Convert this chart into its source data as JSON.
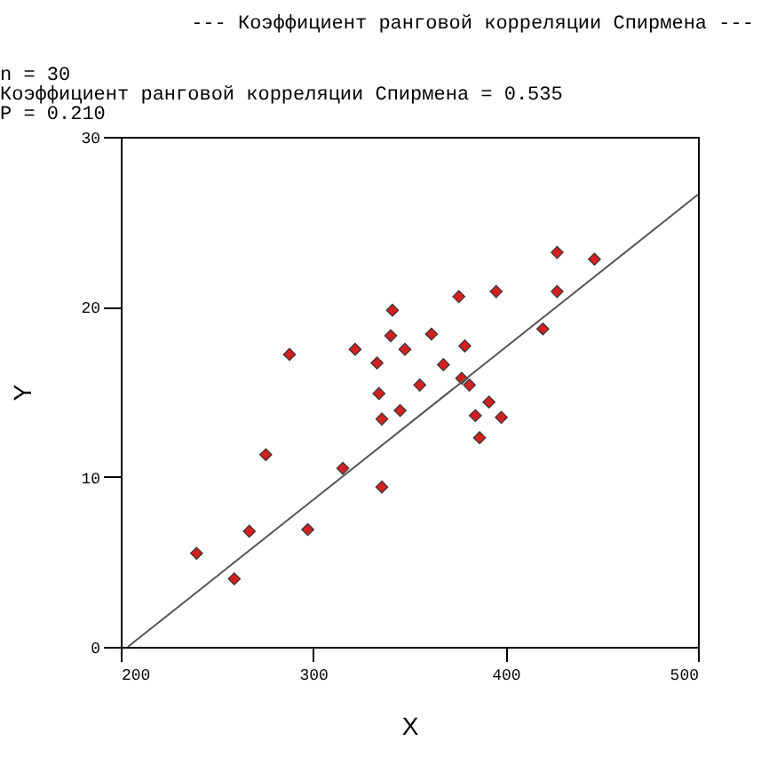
{
  "chart_data": {
    "type": "scatter",
    "title": "--- Коэффициент ранговой корреляции Спирмена ---",
    "annotations": [
      "n =   30",
      "Коэффициент ранговой корреляции Спирмена =  0.535",
      "P = 0.210"
    ],
    "xlabel": "X",
    "ylabel": "Y",
    "xlim": [
      200,
      500
    ],
    "ylim": [
      0,
      30
    ],
    "xticks": [
      200,
      300,
      400,
      500
    ],
    "yticks": [
      0,
      10,
      20,
      30
    ],
    "grid": false,
    "marker": "diamond",
    "series": [
      {
        "color": "#d42020",
        "x": [
          239.4,
          259,
          266.8,
          275.4,
          287.7,
          297.2,
          315.4,
          321.8,
          333.2,
          334.2,
          335.7,
          335.7,
          340.3,
          341.2,
          345.2,
          347.7,
          355.4,
          361.5,
          367.7,
          375.7,
          377.2,
          378.8,
          381.2,
          384.3,
          386.5,
          391.4,
          395.1,
          397.8,
          419.4,
          426.8,
          426.8,
          446.2
        ],
        "values": [
          5.5,
          4.0,
          6.8,
          11.3,
          17.2,
          6.9,
          10.5,
          17.5,
          16.7,
          14.9,
          13.4,
          9.4,
          18.3,
          19.8,
          13.9,
          17.5,
          15.4,
          18.4,
          16.6,
          20.6,
          15.8,
          17.7,
          15.4,
          13.6,
          12.3,
          14.4,
          20.9,
          13.5,
          18.7,
          20.9,
          23.2,
          22.8
        ]
      },
      {
        "type": "line",
        "marker": "none",
        "color": "#555555",
        "x": [
          203.7,
          500
        ],
        "values": [
          0,
          26.6
        ]
      }
    ]
  }
}
